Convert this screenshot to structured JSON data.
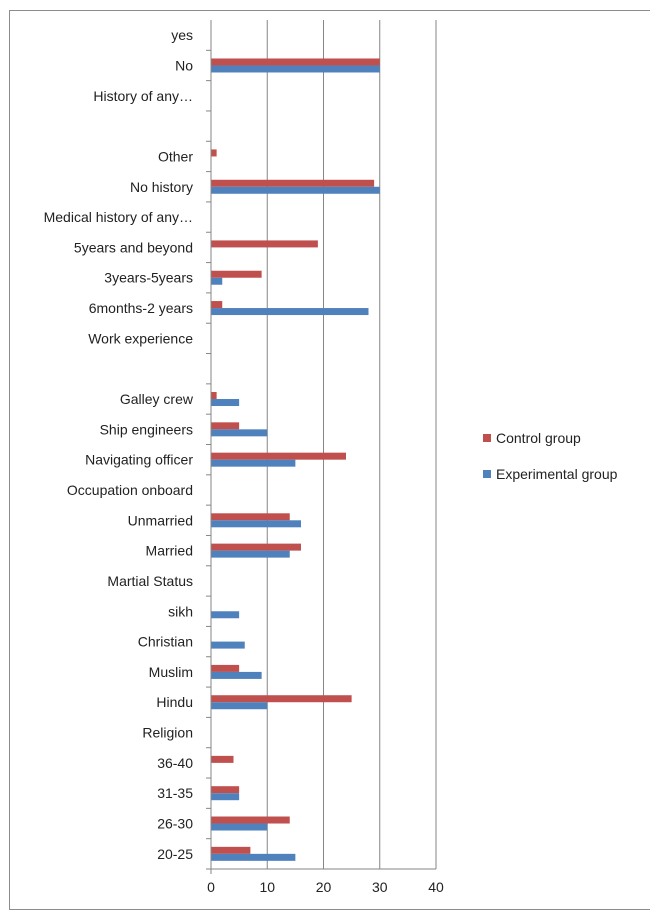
{
  "chart_data": {
    "type": "bar",
    "orientation": "horizontal",
    "categories": [
      "20-25",
      "26-30",
      "31-35",
      "36-40",
      "Religion",
      "Hindu",
      "Muslim",
      "Christian",
      "sikh",
      "Martial Status",
      "Married",
      "Unmarried",
      "Occupation onboard",
      "Navigating officer",
      "Ship engineers",
      "Galley crew",
      "",
      "Work experience",
      "6months-2 years",
      "3years-5years",
      "5years and beyond",
      "Medical history of any…",
      "No history",
      "Other",
      "",
      "History of any…",
      "No",
      "yes"
    ],
    "series": [
      {
        "name": "Control group",
        "color": "#c0504d",
        "values": [
          7,
          14,
          5,
          4,
          0,
          25,
          5,
          0,
          0,
          0,
          16,
          14,
          0,
          24,
          5,
          1,
          0,
          0,
          2,
          9,
          19,
          0,
          29,
          1,
          0,
          0,
          30,
          0
        ]
      },
      {
        "name": "Experimental group",
        "color": "#4f81bd",
        "values": [
          15,
          10,
          5,
          0,
          0,
          10,
          9,
          6,
          5,
          0,
          14,
          16,
          0,
          15,
          10,
          5,
          0,
          0,
          28,
          2,
          0,
          0,
          30,
          0,
          0,
          0,
          30,
          0
        ]
      }
    ],
    "xlim": [
      0,
      40
    ],
    "xticks": [
      "0",
      "10",
      "20",
      "30",
      "40"
    ],
    "title": "",
    "xlabel": "",
    "ylabel": "",
    "grid": "vertical",
    "legend_position": "right"
  }
}
